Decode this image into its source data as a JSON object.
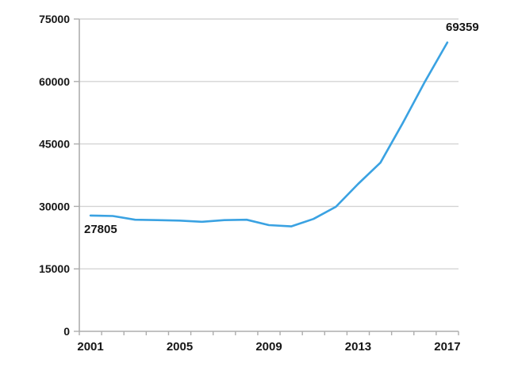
{
  "chart_data": {
    "type": "line",
    "title": "",
    "xlabel": "",
    "ylabel": "",
    "x": [
      2001,
      2002,
      2003,
      2004,
      2005,
      2006,
      2007,
      2008,
      2009,
      2010,
      2011,
      2012,
      2013,
      2014,
      2015,
      2016,
      2017
    ],
    "values": [
      27805,
      27700,
      26800,
      26700,
      26600,
      26300,
      26700,
      26800,
      25500,
      25200,
      27000,
      29900,
      35400,
      40500,
      50000,
      60000,
      69359
    ],
    "ylim": [
      0,
      75000
    ],
    "y_ticks": [
      0,
      15000,
      30000,
      45000,
      60000,
      75000
    ],
    "y_tick_labels": [
      "0",
      "15000",
      "30000",
      "45000",
      "60000",
      "75000"
    ],
    "x_tick_labels": [
      "2001",
      "2005",
      "2009",
      "2013",
      "2017"
    ],
    "grid": "horizontal",
    "legend_position": "none",
    "line_color": "#3AA2E2",
    "annotations": [
      {
        "text": "27805",
        "year": 2001,
        "value": 27805,
        "placement": "below-left-of-start"
      },
      {
        "text": "69359",
        "year": 2017,
        "value": 69359,
        "placement": "above-end"
      }
    ]
  },
  "colors": {
    "background": "#FFFFFF",
    "line": "#3AA2E2",
    "grid": "#D4D4D4",
    "axis": "#ADADAD",
    "label_text": "#161616"
  }
}
